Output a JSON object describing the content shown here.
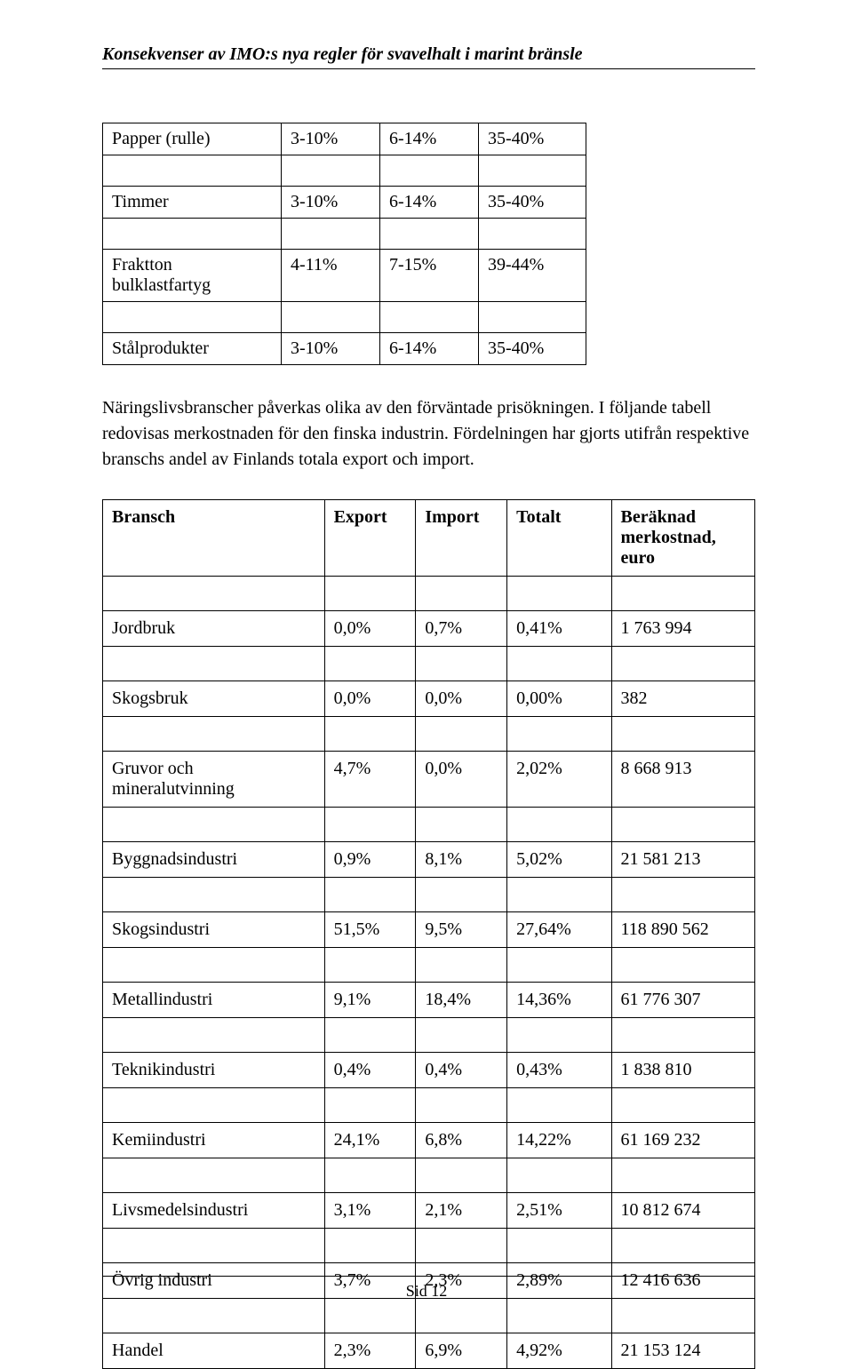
{
  "header": {
    "title": "Konsekvenser av IMO:s nya regler för svavelhalt i marint bränsle"
  },
  "table1": {
    "rows": [
      {
        "label": "Papper (rulle)",
        "a": "3-10%",
        "b": "6-14%",
        "c": "35-40%"
      },
      {
        "label": "Timmer",
        "a": "3-10%",
        "b": "6-14%",
        "c": "35-40%"
      },
      {
        "label": "Fraktton bulklastfartyg",
        "a": "4-11%",
        "b": "7-15%",
        "c": "39-44%"
      },
      {
        "label": "Stålprodukter",
        "a": "3-10%",
        "b": "6-14%",
        "c": "35-40%"
      }
    ]
  },
  "paragraph": "Näringslivsbranscher påverkas olika av den förväntade prisökningen. I följande tabell redovisas merkostnaden för den finska industrin. Fördelningen har gjorts utifrån respektive branschs andel av Finlands totala export och import.",
  "table2": {
    "headers": {
      "c1": "Bransch",
      "c2": "Export",
      "c3": "Import",
      "c4": "Totalt",
      "c5": "Beräknad merkostnad, euro"
    },
    "rows": [
      {
        "c1": "Jordbruk",
        "c2": "0,0%",
        "c3": "0,7%",
        "c4": "0,41%",
        "c5": "1 763 994"
      },
      {
        "c1": "Skogsbruk",
        "c2": "0,0%",
        "c3": "0,0%",
        "c4": "0,00%",
        "c5": "382"
      },
      {
        "c1": "Gruvor och mineralutvinning",
        "c2": "4,7%",
        "c3": "0,0%",
        "c4": "2,02%",
        "c5": "8 668 913"
      },
      {
        "c1": "Byggnadsindustri",
        "c2": "0,9%",
        "c3": "8,1%",
        "c4": "5,02%",
        "c5": "21 581 213"
      },
      {
        "c1": "Skogsindustri",
        "c2": "51,5%",
        "c3": "9,5%",
        "c4": "27,64%",
        "c5": "118 890 562"
      },
      {
        "c1": "Metallindustri",
        "c2": "9,1%",
        "c3": "18,4%",
        "c4": "14,36%",
        "c5": "61 776 307"
      },
      {
        "c1": "Teknikindustri",
        "c2": "0,4%",
        "c3": "0,4%",
        "c4": "0,43%",
        "c5": "1 838 810"
      },
      {
        "c1": "Kemiindustri",
        "c2": "24,1%",
        "c3": "6,8%",
        "c4": "14,22%",
        "c5": "61 169 232"
      },
      {
        "c1": "Livsmedelsindustri",
        "c2": "3,1%",
        "c3": "2,1%",
        "c4": "2,51%",
        "c5": "10 812 674"
      },
      {
        "c1": "Övrig industri",
        "c2": "3,7%",
        "c3": "2,3%",
        "c4": "2,89%",
        "c5": "12 416 636"
      },
      {
        "c1": "Handel",
        "c2": "2,3%",
        "c3": "6,9%",
        "c4": "4,92%",
        "c5": "21 153 124"
      }
    ]
  },
  "footer": {
    "text": "Sid 12"
  }
}
